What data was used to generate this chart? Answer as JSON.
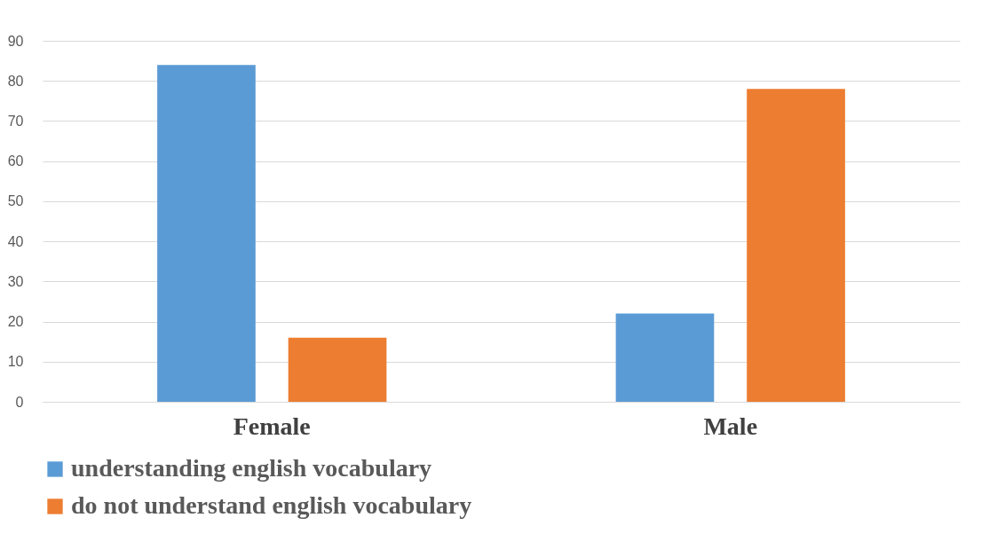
{
  "chart_data": {
    "type": "bar",
    "categories": [
      "Female",
      "Male"
    ],
    "series": [
      {
        "name": "understanding english vocabulary",
        "color": "#5b9bd5",
        "values": [
          84,
          22
        ]
      },
      {
        "name": "do not understand english vocabulary",
        "color": "#ed7d31",
        "values": [
          16,
          78
        ]
      }
    ],
    "ylim": [
      0,
      90
    ],
    "yticks": [
      0,
      10,
      20,
      30,
      40,
      50,
      60,
      70,
      80,
      90
    ],
    "grid": "y",
    "legend": "bottom"
  }
}
